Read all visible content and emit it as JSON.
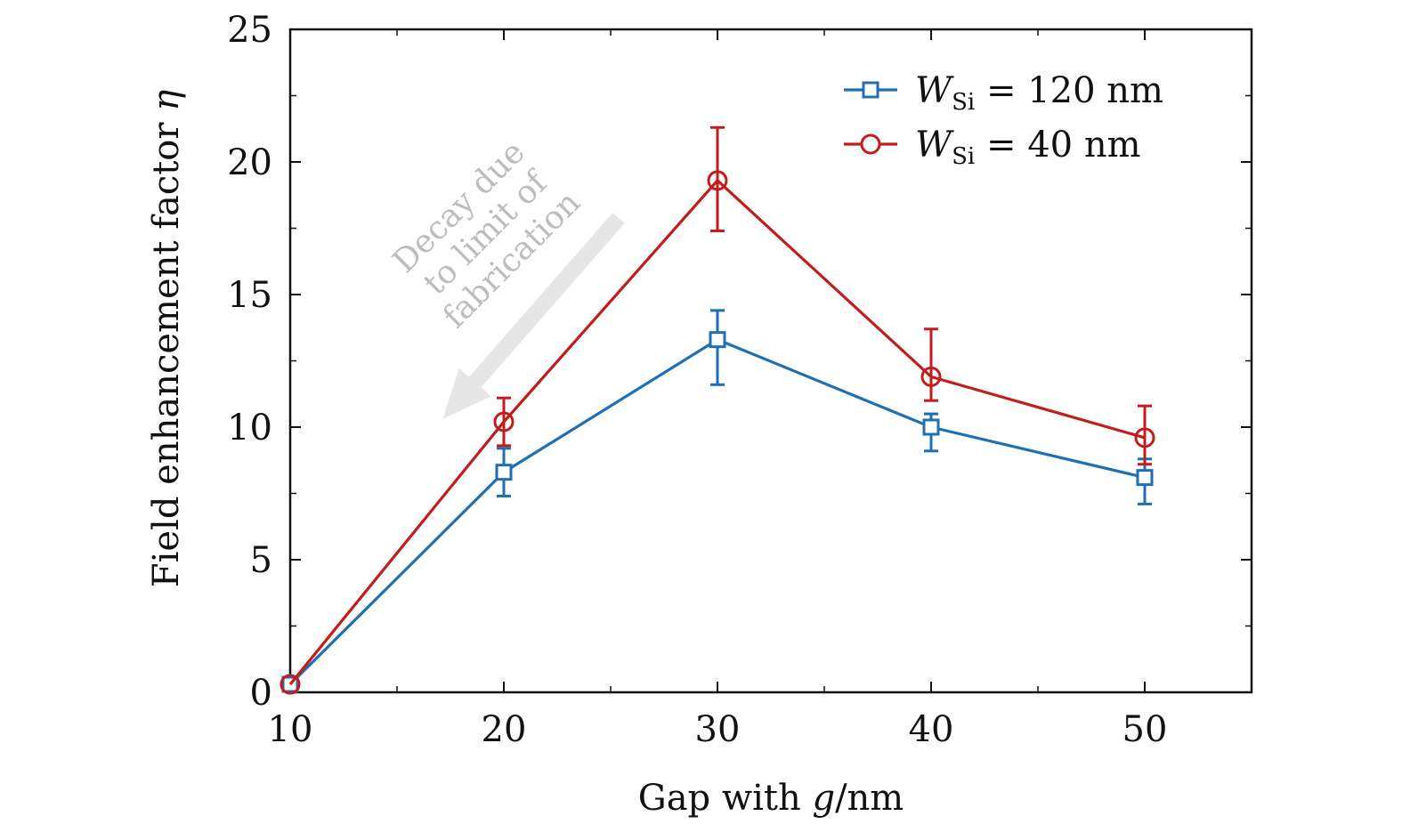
{
  "chart_data": {
    "type": "line",
    "title": "",
    "xlabel": {
      "prefix": "Gap with ",
      "var": "g",
      "suffix": "/nm"
    },
    "ylabel": {
      "prefix": "Field enhancement factor ",
      "var": "η"
    },
    "x": [
      10,
      20,
      30,
      40,
      50
    ],
    "xlim": [
      10,
      55
    ],
    "ylim": [
      0,
      25
    ],
    "xticks": [
      10,
      20,
      30,
      40,
      50
    ],
    "yticks": [
      0,
      5,
      10,
      15,
      20,
      25
    ],
    "grid": false,
    "legend_position": "top-right",
    "series": [
      {
        "name": "W_Si = 120 nm",
        "legend_var": "W",
        "legend_sub": "Si",
        "legend_rest": " = 120 nm",
        "color": "#1f6fb5",
        "marker": "square",
        "values": [
          0.3,
          8.3,
          13.3,
          10.0,
          8.1
        ],
        "err_low": [
          0,
          0.9,
          1.7,
          0.9,
          1.0
        ],
        "err_high": [
          0,
          0.9,
          1.1,
          0.5,
          0.7
        ]
      },
      {
        "name": "W_Si = 40 nm",
        "legend_var": "W",
        "legend_sub": "Si",
        "legend_rest": " = 40 nm",
        "color": "#c21d1d",
        "marker": "circle",
        "values": [
          0.3,
          10.2,
          19.3,
          11.9,
          9.6
        ],
        "err_low": [
          0,
          0.9,
          1.9,
          0.9,
          1.0
        ],
        "err_high": [
          0,
          0.9,
          2.0,
          1.8,
          1.2
        ]
      }
    ],
    "annotation": {
      "lines": [
        "Decay due",
        "to limit of",
        "fabrication"
      ],
      "color": "#bdbdbd",
      "arrow_color": "#e6e6e6"
    }
  }
}
